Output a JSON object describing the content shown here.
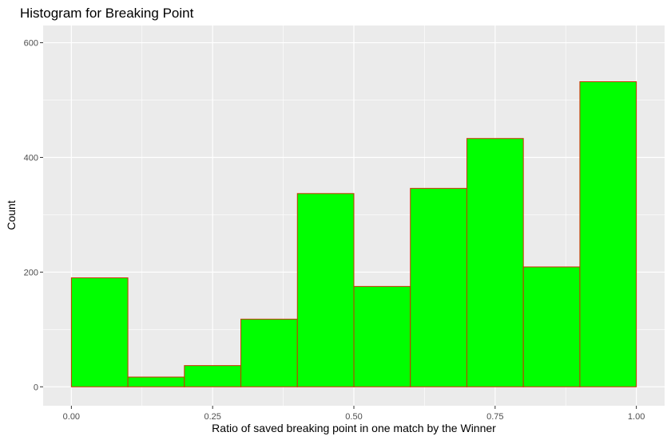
{
  "chart_data": {
    "type": "bar",
    "title": "Histogram for Breaking Point",
    "xlabel": "Ratio of saved breaking point in one match by the Winner",
    "ylabel": "Count",
    "xlim": [
      -0.05,
      1.05
    ],
    "ylim": [
      -33,
      630
    ],
    "x_ticks": [
      0.0,
      0.25,
      0.5,
      0.75,
      1.0
    ],
    "x_tick_labels": [
      "0.00",
      "0.25",
      "0.50",
      "0.75",
      "1.00"
    ],
    "y_ticks": [
      0,
      200,
      400,
      600
    ],
    "y_tick_labels": [
      "0",
      "200",
      "400",
      "600"
    ],
    "bin_width": 0.1,
    "bins": [
      {
        "x0": 0.0,
        "x1": 0.1,
        "count": 190
      },
      {
        "x0": 0.1,
        "x1": 0.2,
        "count": 17
      },
      {
        "x0": 0.2,
        "x1": 0.3,
        "count": 37
      },
      {
        "x0": 0.3,
        "x1": 0.4,
        "count": 118
      },
      {
        "x0": 0.4,
        "x1": 0.5,
        "count": 337
      },
      {
        "x0": 0.5,
        "x1": 0.6,
        "count": 175
      },
      {
        "x0": 0.6,
        "x1": 0.7,
        "count": 346
      },
      {
        "x0": 0.7,
        "x1": 0.8,
        "count": 433
      },
      {
        "x0": 0.8,
        "x1": 0.9,
        "count": 209
      },
      {
        "x0": 0.9,
        "x1": 1.0,
        "count": 532
      }
    ],
    "grid": true,
    "legend": "none",
    "colors": {
      "fill": "#00ff00",
      "outline": "#cc3300",
      "panel": "#ebebeb",
      "grid": "#ffffff"
    }
  }
}
